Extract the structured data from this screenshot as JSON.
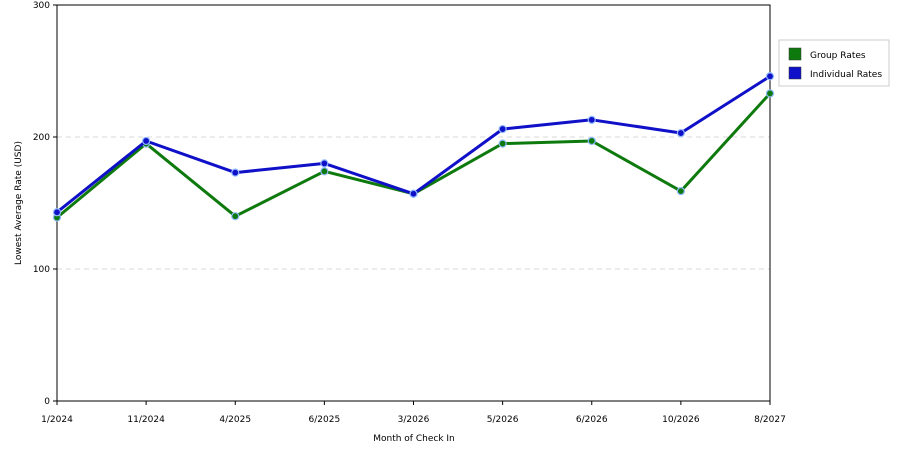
{
  "chart_data": {
    "type": "line",
    "title": "",
    "xlabel": "Month of Check In",
    "ylabel": "Lowest Average Rate (USD)",
    "categories": [
      "1/2024",
      "11/2024",
      "4/2025",
      "6/2025",
      "3/2026",
      "5/2026",
      "6/2026",
      "10/2026",
      "8/2027"
    ],
    "ylim": [
      0,
      300
    ],
    "yticks": [
      0,
      100,
      200,
      300
    ],
    "grid": "horizontal-dashed",
    "legend_position": "right",
    "series": [
      {
        "name": "Group Rates",
        "color": "#0e7a0e",
        "values": [
          139,
          195,
          140,
          174,
          157,
          195,
          197,
          159,
          233
        ]
      },
      {
        "name": "Individual Rates",
        "color": "#1010c8",
        "values": [
          143,
          197,
          173,
          180,
          157,
          206,
          213,
          203,
          246
        ]
      }
    ]
  }
}
